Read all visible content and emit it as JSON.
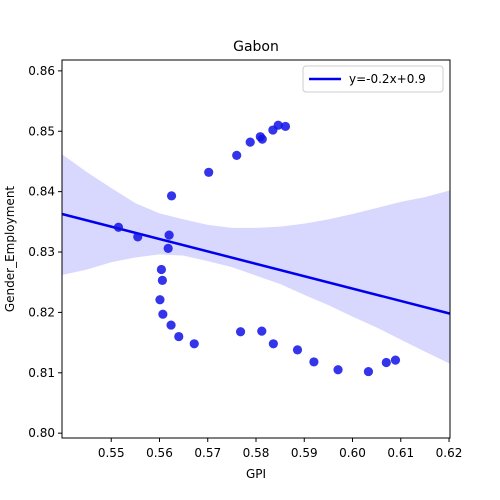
{
  "chart_data": {
    "type": "scatter",
    "title": "Gabon",
    "xlabel": "GPI",
    "ylabel": "Gender_Employment",
    "xlim": [
      0.5398,
      0.6202
    ],
    "ylim": [
      0.7992,
      0.8618
    ],
    "xticks": [
      0.55,
      0.56,
      0.57,
      0.58,
      0.59,
      0.6,
      0.61,
      0.62
    ],
    "xtick_labels": [
      "0.55",
      "0.56",
      "0.57",
      "0.58",
      "0.59",
      "0.60",
      "0.61",
      "0.62"
    ],
    "yticks": [
      0.8,
      0.81,
      0.82,
      0.83,
      0.84,
      0.85,
      0.86
    ],
    "ytick_labels": [
      "0.80",
      "0.81",
      "0.82",
      "0.83",
      "0.84",
      "0.85",
      "0.86"
    ],
    "grid": false,
    "legend_position": "top-right",
    "series": [
      {
        "name": "",
        "color": "#1010e8",
        "points": [
          {
            "x": 0.5515,
            "y": 0.8341
          },
          {
            "x": 0.5555,
            "y": 0.8325
          },
          {
            "x": 0.5625,
            "y": 0.8393
          },
          {
            "x": 0.562,
            "y": 0.8328
          },
          {
            "x": 0.5618,
            "y": 0.8306
          },
          {
            "x": 0.5604,
            "y": 0.8271
          },
          {
            "x": 0.5606,
            "y": 0.8253
          },
          {
            "x": 0.5601,
            "y": 0.8221
          },
          {
            "x": 0.5607,
            "y": 0.8197
          },
          {
            "x": 0.5624,
            "y": 0.8179
          },
          {
            "x": 0.564,
            "y": 0.816
          },
          {
            "x": 0.5672,
            "y": 0.8148
          },
          {
            "x": 0.5702,
            "y": 0.8432
          },
          {
            "x": 0.576,
            "y": 0.846
          },
          {
            "x": 0.5768,
            "y": 0.8168
          },
          {
            "x": 0.5788,
            "y": 0.8482
          },
          {
            "x": 0.5809,
            "y": 0.8491
          },
          {
            "x": 0.5813,
            "y": 0.8487
          },
          {
            "x": 0.5812,
            "y": 0.8169
          },
          {
            "x": 0.5835,
            "y": 0.8502
          },
          {
            "x": 0.5846,
            "y": 0.851
          },
          {
            "x": 0.5861,
            "y": 0.8508
          },
          {
            "x": 0.5836,
            "y": 0.8148
          },
          {
            "x": 0.5886,
            "y": 0.8138
          },
          {
            "x": 0.592,
            "y": 0.8118
          },
          {
            "x": 0.597,
            "y": 0.8105
          },
          {
            "x": 0.6033,
            "y": 0.8102
          },
          {
            "x": 0.607,
            "y": 0.8117
          },
          {
            "x": 0.6089,
            "y": 0.8121
          }
        ]
      }
    ],
    "regression": {
      "label": "y=-0.2x+0.9",
      "color": "#0000ee",
      "x": [
        0.5398,
        0.6202
      ],
      "y": [
        0.8363,
        0.8198
      ]
    },
    "confidence_band": {
      "color": "#d8d8ff",
      "x": [
        0.5398,
        0.545,
        0.55,
        0.555,
        0.56,
        0.565,
        0.57,
        0.575,
        0.58,
        0.585,
        0.59,
        0.595,
        0.6,
        0.605,
        0.61,
        0.615,
        0.6202
      ],
      "upper": [
        0.8462,
        0.8432,
        0.8406,
        0.8381,
        0.8364,
        0.8354,
        0.8345,
        0.834,
        0.834,
        0.8342,
        0.8347,
        0.8354,
        0.8363,
        0.8373,
        0.8383,
        0.8391,
        0.8402
      ],
      "lower": [
        0.8262,
        0.8271,
        0.8283,
        0.8291,
        0.8296,
        0.8294,
        0.8285,
        0.8275,
        0.8261,
        0.8247,
        0.8229,
        0.8212,
        0.8193,
        0.8175,
        0.8155,
        0.8135,
        0.8115
      ]
    }
  }
}
